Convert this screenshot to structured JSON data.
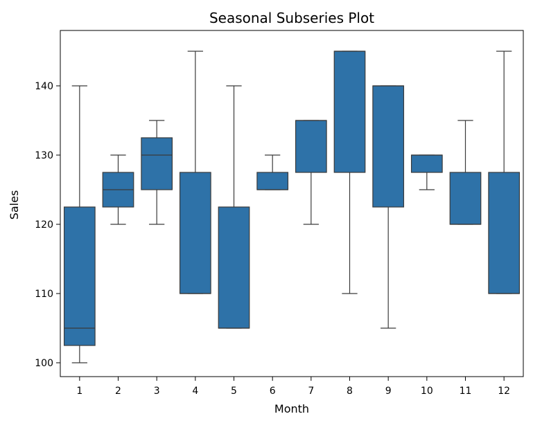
{
  "chart_data": {
    "type": "box",
    "title": "Seasonal Subseries Plot",
    "xlabel": "Month",
    "ylabel": "Sales",
    "ylim": [
      98,
      148
    ],
    "yticks": [
      100,
      110,
      120,
      130,
      140
    ],
    "grid": false,
    "legend": "none",
    "colors": {
      "box": "#2e72a8",
      "line": "#3a3a3a"
    },
    "categories": [
      "1",
      "2",
      "3",
      "4",
      "5",
      "6",
      "7",
      "8",
      "9",
      "10",
      "11",
      "12"
    ],
    "boxes": [
      {
        "month": "1",
        "whisker_low": 100,
        "q1": 102.5,
        "median": 105,
        "q3": 122.5,
        "whisker_high": 140
      },
      {
        "month": "2",
        "whisker_low": 120,
        "q1": 122.5,
        "median": 125,
        "q3": 127.5,
        "whisker_high": 130
      },
      {
        "month": "3",
        "whisker_low": 120,
        "q1": 125,
        "median": 130,
        "q3": 132.5,
        "whisker_high": 135
      },
      {
        "month": "4",
        "whisker_low": 110,
        "q1": 110,
        "median": 110,
        "q3": 127.5,
        "whisker_high": 145
      },
      {
        "month": "5",
        "whisker_low": 105,
        "q1": 105,
        "median": 105,
        "q3": 122.5,
        "whisker_high": 140
      },
      {
        "month": "6",
        "whisker_low": 125,
        "q1": 125,
        "median": 125,
        "q3": 127.5,
        "whisker_high": 130
      },
      {
        "month": "7",
        "whisker_low": 120,
        "q1": 127.5,
        "median": 135,
        "q3": 135,
        "whisker_high": 135
      },
      {
        "month": "8",
        "whisker_low": 110,
        "q1": 127.5,
        "median": 145,
        "q3": 145,
        "whisker_high": 145
      },
      {
        "month": "9",
        "whisker_low": 105,
        "q1": 122.5,
        "median": 140,
        "q3": 140,
        "whisker_high": 140
      },
      {
        "month": "10",
        "whisker_low": 125,
        "q1": 127.5,
        "median": 130,
        "q3": 130,
        "whisker_high": 130
      },
      {
        "month": "11",
        "whisker_low": 120,
        "q1": 120,
        "median": 120,
        "q3": 127.5,
        "whisker_high": 135
      },
      {
        "month": "12",
        "whisker_low": 110,
        "q1": 110,
        "median": 110,
        "q3": 127.5,
        "whisker_high": 145
      }
    ]
  }
}
